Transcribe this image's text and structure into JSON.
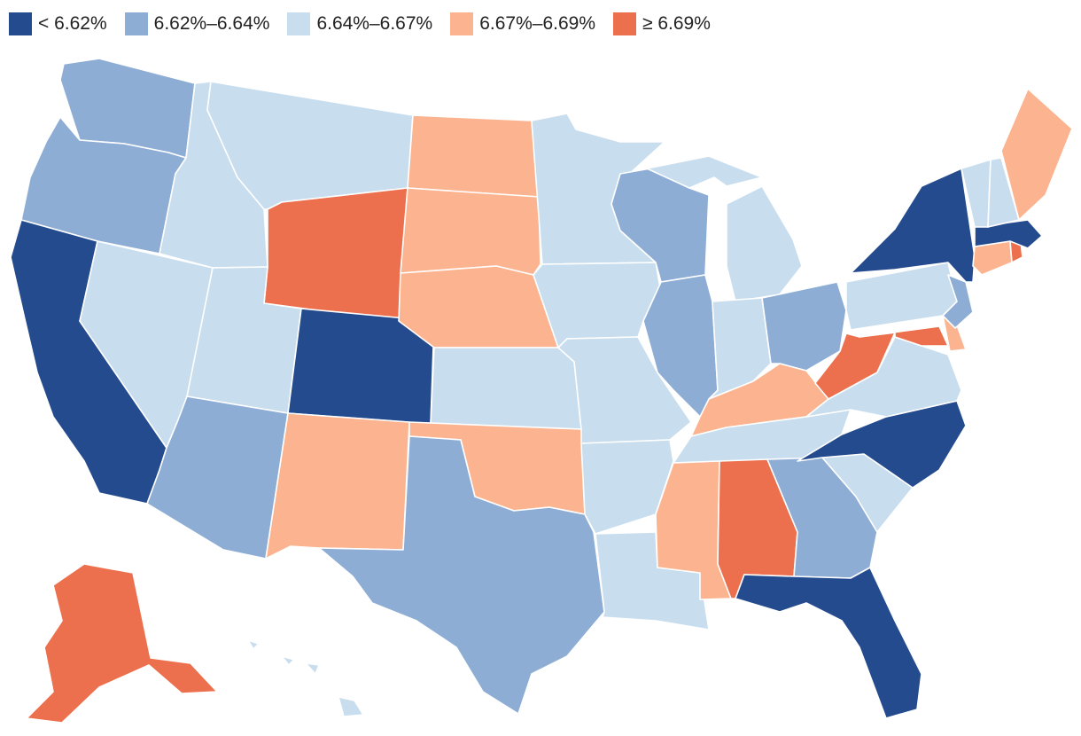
{
  "legend": {
    "bins": [
      {
        "label": "< 6.62%",
        "color": "#234b8e"
      },
      {
        "label": "6.62%–6.64%",
        "color": "#8eadd5"
      },
      {
        "label": "6.64%–6.67%",
        "color": "#c8ddee"
      },
      {
        "label": "6.67%–6.69%",
        "color": "#fbb48f"
      },
      {
        "label": "≥ 6.69%",
        "color": "#ec704d"
      }
    ]
  },
  "state_bins": {
    "WA": 1,
    "OR": 1,
    "CA": 0,
    "NV": 2,
    "ID": 2,
    "MT": 2,
    "WY": 4,
    "UT": 2,
    "AZ": 1,
    "NM": 3,
    "CO": 0,
    "ND": 3,
    "SD": 3,
    "NE": 3,
    "KS": 2,
    "OK": 3,
    "TX": 1,
    "MN": 2,
    "IA": 2,
    "MO": 2,
    "AR": 2,
    "LA": 2,
    "WI": 1,
    "IL": 1,
    "MI": 2,
    "IN": 2,
    "OH": 1,
    "KY": 3,
    "TN": 2,
    "MS": 3,
    "AL": 4,
    "GA": 1,
    "FL": 0,
    "SC": 2,
    "NC": 0,
    "VA": 2,
    "WV": 4,
    "PA": 2,
    "NY": 0,
    "VT": 2,
    "NH": 2,
    "ME": 3,
    "MA": 0,
    "RI": 4,
    "CT": 3,
    "NJ": 1,
    "DE": 3,
    "MD": 4,
    "AK": 4,
    "HI": 2
  }
}
